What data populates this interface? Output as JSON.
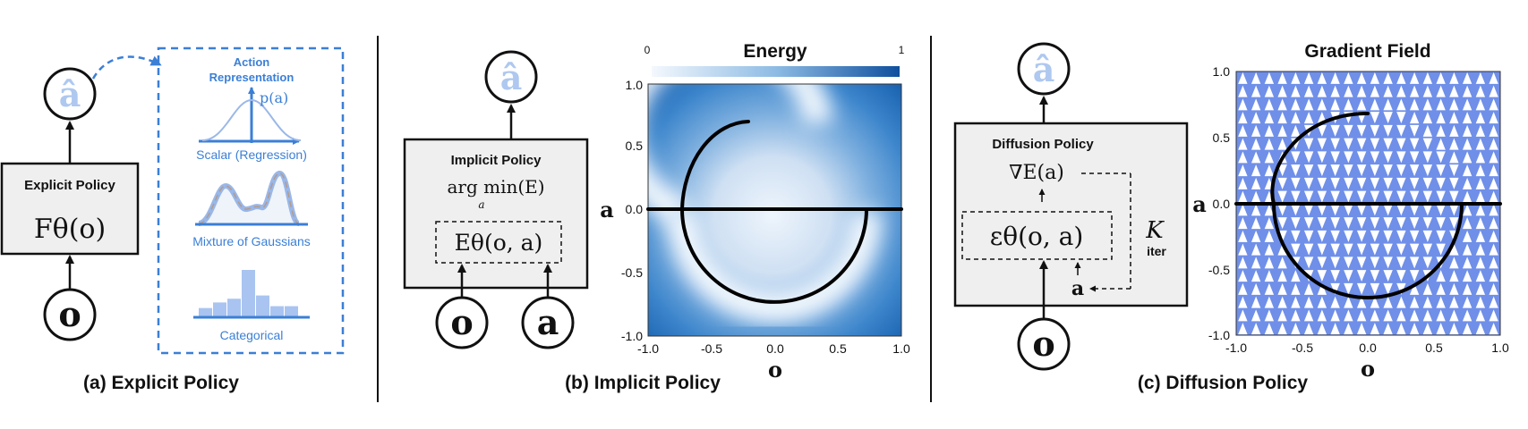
{
  "panel_a": {
    "caption": "(a) Explicit Policy",
    "box_title": "Explicit Policy",
    "box_formula": "Fθ(o)",
    "input_symbol": "o",
    "output_symbol": "â",
    "representation": {
      "title_line1": "Action",
      "title_line2": "Representation",
      "pdf_label": "p(a)",
      "labels": [
        "Scalar (Regression)",
        "Mixture of Gaussians",
        "Categorical"
      ],
      "categorical_bins": [
        0.18,
        0.3,
        0.38,
        1.0,
        0.45,
        0.22,
        0.22
      ]
    }
  },
  "panel_b": {
    "caption": "(b) Implicit Policy",
    "box_title": "Implicit Policy",
    "formula_top": "arg min(E)",
    "formula_sub": "a",
    "formula_energy": "Eθ(o, a)",
    "inputs": [
      "o",
      "a"
    ],
    "output_symbol": "â",
    "plot": {
      "title": "Energy",
      "colorbar_ticks": [
        "0",
        "1"
      ],
      "xlabel": "o",
      "ylabel": "a",
      "ticks": [
        "-1.0",
        "-0.5",
        "0.0",
        "0.5",
        "1.0"
      ]
    }
  },
  "panel_c": {
    "caption": "(c) Diffusion Policy",
    "box_title": "Diffusion Policy",
    "formula_grad": "∇E(a)",
    "formula_eps": "εθ(o, a)",
    "formula_a": "a",
    "loop_K": "K",
    "loop_iter": "iter",
    "input_symbol": "o",
    "output_symbol": "â",
    "plot": {
      "title": "Gradient Field",
      "xlabel": "o",
      "ylabel": "a",
      "ticks": [
        "-1.0",
        "-0.5",
        "0.0",
        "0.5",
        "1.0"
      ]
    }
  },
  "colors": {
    "field_blue": "#6f8fe8",
    "energy_dark": "#1657a8",
    "energy_light": "#f2f7fd",
    "rep_blue": "#3b7fd6",
    "hat_light": "#aec8ef",
    "box_fill": "#efefef"
  }
}
